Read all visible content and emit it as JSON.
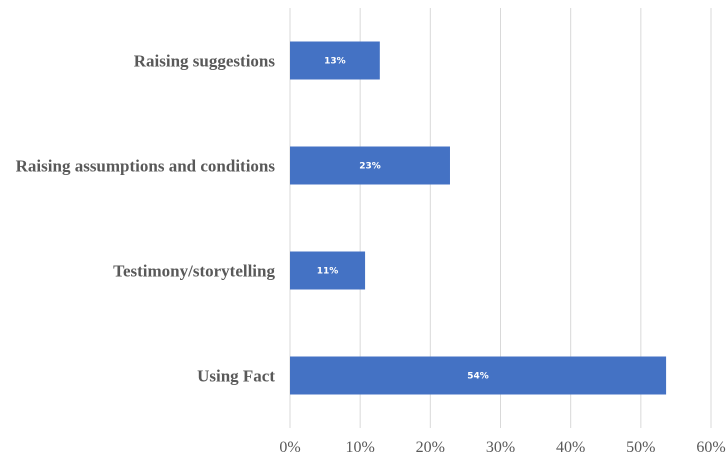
{
  "chart_data": {
    "type": "bar",
    "orientation": "horizontal",
    "categories": [
      "Raising suggestions",
      "Raising assumptions and conditions",
      "Testimony/storytelling",
      "Using Fact"
    ],
    "values": [
      12.8,
      22.8,
      10.7,
      53.6
    ],
    "data_labels": [
      "13%",
      "23%",
      "11%",
      "54%"
    ],
    "x_ticks": [
      "0%",
      "10%",
      "20%",
      "30%",
      "40%",
      "50%",
      "60%"
    ],
    "xlim": [
      0,
      60
    ],
    "grid": true,
    "legend": "none",
    "bar_color": "#4472c4",
    "grid_color": "#d9d9d9"
  }
}
